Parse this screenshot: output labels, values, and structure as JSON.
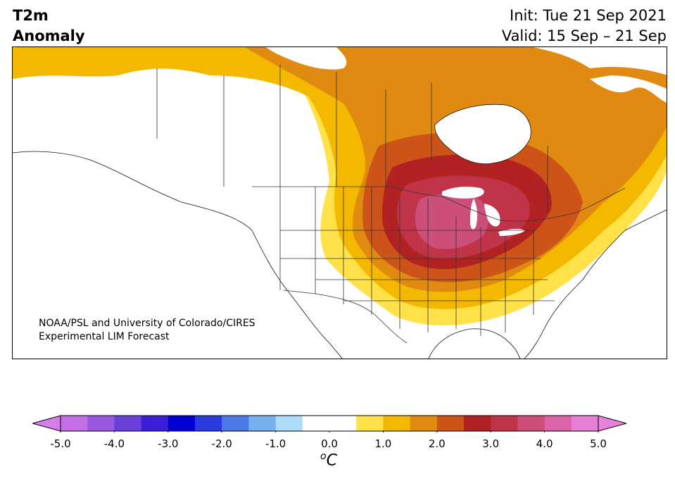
{
  "title": {
    "line1": "T2m",
    "line2": "Anomaly"
  },
  "dates": {
    "init": "Init: Tue 21 Sep 2021",
    "valid": "Valid: 15 Sep – 21 Sep"
  },
  "credit": {
    "line1": "NOAA/PSL and University of Colorado/CIRES",
    "line2": "Experimental LIM Forecast"
  },
  "colorbar": {
    "unit_sup": "o",
    "unit_main": "C",
    "ticks": [
      "-5.0",
      "-4.0",
      "-3.0",
      "-2.0",
      "-1.0",
      "0.0",
      "1.0",
      "2.0",
      "3.0",
      "4.0",
      "5.0"
    ],
    "min": -5.0,
    "max": 5.0,
    "under_color": "#d57ee8",
    "over_color": "#e882dd",
    "bins": [
      {
        "lo": -5.0,
        "hi": -4.5,
        "color": "#c46fe6"
      },
      {
        "lo": -4.5,
        "hi": -4.0,
        "color": "#9a57e0"
      },
      {
        "lo": -4.0,
        "hi": -3.5,
        "color": "#6b3fdc"
      },
      {
        "lo": -3.5,
        "hi": -3.0,
        "color": "#3a1fd6"
      },
      {
        "lo": -3.0,
        "hi": -2.5,
        "color": "#0000d0"
      },
      {
        "lo": -2.5,
        "hi": -2.0,
        "color": "#2a3cdc"
      },
      {
        "lo": -2.0,
        "hi": -1.5,
        "color": "#4d7ae6"
      },
      {
        "lo": -1.5,
        "hi": -1.0,
        "color": "#76b0ee"
      },
      {
        "lo": -1.0,
        "hi": -0.5,
        "color": "#addcfa"
      },
      {
        "lo": -0.5,
        "hi": 0.5,
        "color": "#ffffff"
      },
      {
        "lo": 0.5,
        "hi": 1.0,
        "color": "#ffe14a"
      },
      {
        "lo": 1.0,
        "hi": 1.5,
        "color": "#f4b800"
      },
      {
        "lo": 1.5,
        "hi": 2.0,
        "color": "#e08a12"
      },
      {
        "lo": 2.0,
        "hi": 2.5,
        "color": "#cc5418"
      },
      {
        "lo": 2.5,
        "hi": 3.0,
        "color": "#b22222"
      },
      {
        "lo": 3.0,
        "hi": 3.5,
        "color": "#c03348"
      },
      {
        "lo": 3.5,
        "hi": 4.0,
        "color": "#cc4f7a"
      },
      {
        "lo": 4.0,
        "hi": 4.5,
        "color": "#dc63a8"
      },
      {
        "lo": 4.5,
        "hi": 5.0,
        "color": "#e77fd6"
      }
    ]
  },
  "map": {
    "ocean_color": "#ffffff",
    "land_outline_color": "#111111",
    "border_color": "#333333",
    "lake_color": "#ffffff"
  }
}
